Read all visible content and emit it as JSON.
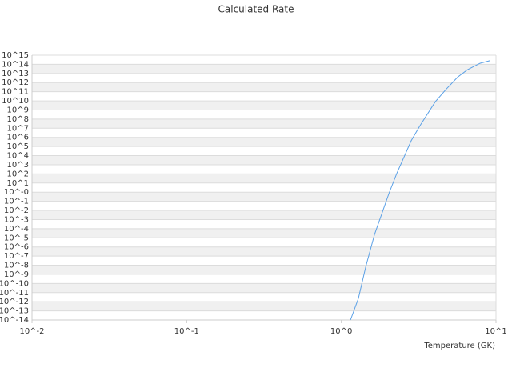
{
  "chart_data": {
    "type": "line",
    "title": "Calculated Rate",
    "x_label": "Temperature (GK)",
    "x": [
      1.146,
      1.29,
      1.44,
      1.64,
      2.03,
      2.28,
      2.83,
      3.23,
      4.05,
      4.78,
      5.65,
      6.52,
      7.88,
      9.1
    ],
    "values": [
      1e-14,
      2.3e-12,
      7.4e-09,
      2.4e-05,
      0.7,
      110,
      430000,
      20000000,
      8000000000,
      200000000000,
      4000000000000,
      25000000000000,
      130000000000000,
      250000000000000
    ],
    "color": "#5aa0e6",
    "xscale": "log",
    "yscale": "log",
    "xlim": [
      0.01,
      10
    ],
    "ylim": [
      1e-14,
      1000000000000000.0
    ],
    "xticks": [
      {
        "value": 0.01,
        "label": "10^-2"
      },
      {
        "value": 0.1,
        "label": "10^-1"
      },
      {
        "value": 1,
        "label": "10^0"
      },
      {
        "value": 10,
        "label": "10^1"
      }
    ],
    "yticks": [
      {
        "value": 1e-14,
        "label": "10^-14"
      },
      {
        "value": 1e-13,
        "label": "10^-13"
      },
      {
        "value": 1e-12,
        "label": "10^-12"
      },
      {
        "value": 1e-11,
        "label": "10^-11"
      },
      {
        "value": 1e-10,
        "label": "10^-10"
      },
      {
        "value": 1e-09,
        "label": "10^-9"
      },
      {
        "value": 1e-08,
        "label": "10^-8"
      },
      {
        "value": 1e-07,
        "label": "10^-7"
      },
      {
        "value": 1e-06,
        "label": "10^-6"
      },
      {
        "value": 1e-05,
        "label": "10^-5"
      },
      {
        "value": 0.0001,
        "label": "10^-4"
      },
      {
        "value": 0.001,
        "label": "10^-3"
      },
      {
        "value": 0.01,
        "label": "10^-2"
      },
      {
        "value": 0.1,
        "label": "10^-1"
      },
      {
        "value": 1,
        "label": "10^-0"
      },
      {
        "value": 10,
        "label": "10^1"
      },
      {
        "value": 100,
        "label": "10^2"
      },
      {
        "value": 1000,
        "label": "10^3"
      },
      {
        "value": 10000,
        "label": "10^4"
      },
      {
        "value": 100000,
        "label": "10^5"
      },
      {
        "value": 1000000,
        "label": "10^6"
      },
      {
        "value": 10000000,
        "label": "10^7"
      },
      {
        "value": 100000000,
        "label": "10^8"
      },
      {
        "value": 1000000000,
        "label": "10^9"
      },
      {
        "value": 10000000000,
        "label": "10^10"
      },
      {
        "value": 100000000000,
        "label": "10^11"
      },
      {
        "value": 1000000000000,
        "label": "10^12"
      },
      {
        "value": 10000000000000,
        "label": "10^13"
      },
      {
        "value": 100000000000000,
        "label": "10^14"
      },
      {
        "value": 1000000000000000,
        "label": "10^15"
      }
    ],
    "grid": true
  }
}
